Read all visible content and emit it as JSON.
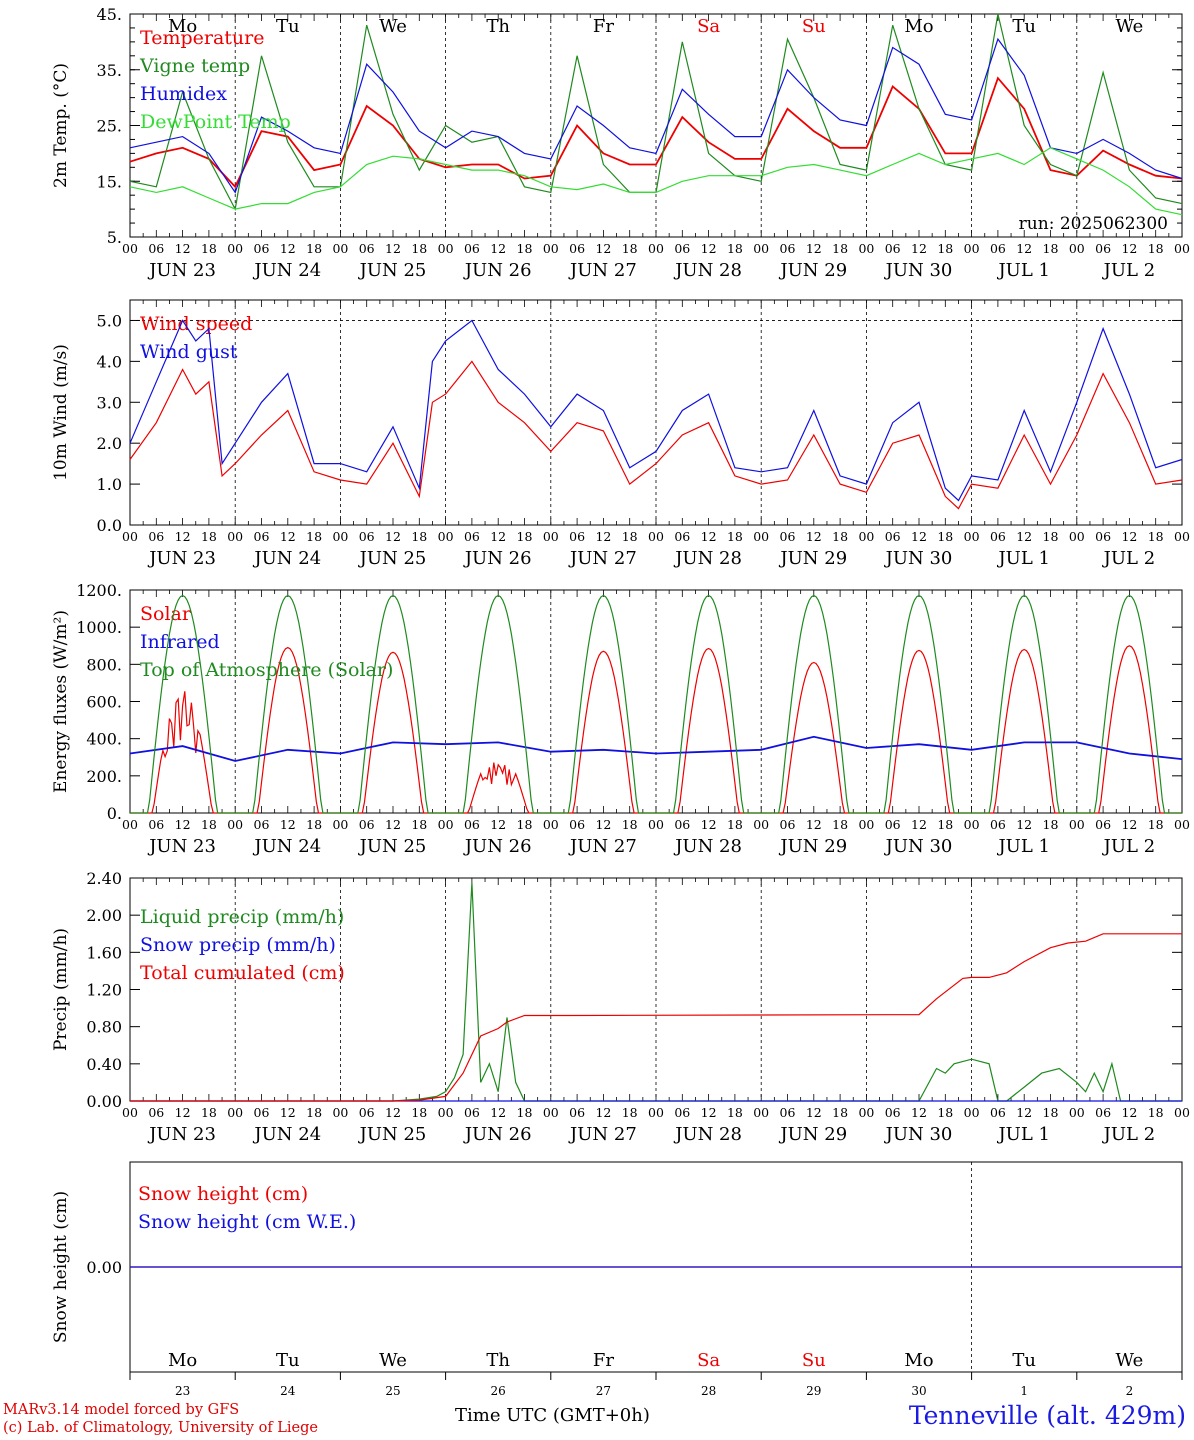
{
  "figure": {
    "run_label": "run: 2025062300",
    "station": "Tenneville (alt. 429m)",
    "credit_line1": "MARv3.14 model forced by GFS",
    "credit_line2": "(c) Lab. of Climatology, University of Liege",
    "time_label": "Time UTC (GMT+0h)"
  },
  "days": {
    "weekday_labels": [
      "Mo",
      "Tu",
      "We",
      "Th",
      "Fr",
      "Sa",
      "Su",
      "Mo",
      "Tu",
      "We"
    ],
    "weekend_indices": [
      5,
      6
    ],
    "date_labels": [
      "JUN 23",
      "JUN 24",
      "JUN 25",
      "JUN 26",
      "JUN 27",
      "JUN 28",
      "JUN 29",
      "JUN 30",
      "JUL  1",
      "JUL  2"
    ],
    "day_numbers": [
      "23",
      "24",
      "25",
      "26",
      "27",
      "28",
      "29",
      "30",
      "1",
      "2"
    ],
    "hour_ticks": [
      "00",
      "06",
      "12",
      "18"
    ],
    "final_tick": "00"
  },
  "colors": {
    "red": "#ee0000",
    "green": "#1f8a1f",
    "blue": "#1010e0",
    "lightgreen": "#33dd33",
    "darkgreen": "#1f8a1f"
  },
  "chart_data": [
    {
      "type": "line",
      "ylabel": "2m Temp. (°C)",
      "ylim": [
        5,
        45
      ],
      "yticks": [
        "5.",
        "15.",
        "25.",
        "35.",
        "45."
      ],
      "x_unit": "hours since JUN 23 00 UTC",
      "xlim": [
        0,
        240
      ],
      "series": [
        {
          "name": "Temperature",
          "color": "red",
          "x": [
            0,
            6,
            12,
            18,
            24,
            30,
            36,
            42,
            48,
            54,
            60,
            66,
            72,
            78,
            84,
            90,
            96,
            102,
            108,
            114,
            120,
            126,
            132,
            138,
            144,
            150,
            156,
            162,
            168,
            174,
            180,
            186,
            192,
            198,
            204,
            210,
            216,
            222,
            228,
            234,
            240
          ],
          "y": [
            18.5,
            20,
            21,
            19,
            14,
            24,
            23,
            17,
            18,
            28.5,
            25,
            19,
            17.5,
            18,
            18,
            15.5,
            16,
            25,
            20,
            18,
            18,
            26.5,
            22,
            19,
            19,
            28,
            24,
            21,
            21,
            32,
            28,
            20,
            20,
            33.5,
            28,
            17,
            16,
            20.5,
            18,
            16,
            15.5
          ]
        },
        {
          "name": "Vigne temp",
          "color": "green",
          "x": [
            0,
            6,
            12,
            18,
            24,
            30,
            36,
            42,
            48,
            54,
            60,
            66,
            72,
            78,
            84,
            90,
            96,
            102,
            108,
            114,
            120,
            126,
            132,
            138,
            144,
            150,
            156,
            162,
            168,
            174,
            180,
            186,
            192,
            198,
            204,
            210,
            216,
            222,
            228,
            234,
            240
          ],
          "y": [
            15,
            14,
            31,
            19,
            10,
            37.5,
            22,
            14,
            14,
            43,
            27,
            17,
            25,
            22,
            23,
            14,
            13,
            37.5,
            18,
            13,
            13,
            40,
            20,
            16,
            15,
            40.5,
            30,
            18,
            17,
            43,
            28,
            18,
            17,
            45,
            25,
            18,
            16,
            34.5,
            17,
            12,
            11
          ]
        },
        {
          "name": "Humidex",
          "color": "blue",
          "x": [
            0,
            6,
            12,
            18,
            24,
            30,
            36,
            42,
            48,
            54,
            60,
            66,
            72,
            78,
            84,
            90,
            96,
            102,
            108,
            114,
            120,
            126,
            132,
            138,
            144,
            150,
            156,
            162,
            168,
            174,
            180,
            186,
            192,
            198,
            204,
            210,
            216,
            222,
            228,
            234,
            240
          ],
          "y": [
            21,
            22,
            23,
            20,
            13,
            26.5,
            24,
            21,
            20,
            36,
            31,
            24,
            21,
            24,
            23,
            20,
            19,
            28.5,
            25,
            21,
            20,
            31.5,
            27,
            23,
            23,
            35,
            30,
            26,
            25,
            39,
            36,
            27,
            26,
            40.5,
            34,
            21,
            20,
            22.5,
            20,
            17,
            15.5
          ]
        },
        {
          "name": "DewPoint Temp",
          "color": "lightgreen",
          "x": [
            0,
            6,
            12,
            18,
            24,
            30,
            36,
            42,
            48,
            54,
            60,
            66,
            72,
            78,
            84,
            90,
            96,
            102,
            108,
            114,
            120,
            126,
            132,
            138,
            144,
            150,
            156,
            162,
            168,
            174,
            180,
            186,
            192,
            198,
            204,
            210,
            216,
            222,
            228,
            234,
            240
          ],
          "y": [
            14,
            13,
            14,
            12,
            10,
            11,
            11,
            13,
            14,
            18,
            19.5,
            19,
            18,
            17,
            17,
            16,
            14,
            13.5,
            14.5,
            13,
            13,
            15,
            16,
            16,
            16,
            17.5,
            18,
            17,
            16,
            18,
            20,
            18,
            19,
            20,
            18,
            21,
            19,
            17,
            14,
            10,
            9
          ]
        }
      ]
    },
    {
      "type": "line",
      "ylabel": "10m Wind (m/s)",
      "ylim": [
        0,
        5.5
      ],
      "yticks": [
        "0.0",
        "1.0",
        "2.0",
        "3.0",
        "4.0",
        "5.0"
      ],
      "xlim": [
        0,
        240
      ],
      "series": [
        {
          "name": "Wind speed",
          "color": "red",
          "x": [
            0,
            6,
            12,
            15,
            18,
            21,
            24,
            30,
            36,
            42,
            48,
            54,
            60,
            66,
            69,
            72,
            78,
            84,
            90,
            96,
            102,
            108,
            114,
            120,
            126,
            132,
            138,
            144,
            150,
            156,
            162,
            168,
            174,
            180,
            186,
            189,
            192,
            198,
            204,
            210,
            216,
            222,
            228,
            234,
            240
          ],
          "y": [
            1.6,
            2.5,
            3.8,
            3.2,
            3.5,
            1.2,
            1.5,
            2.2,
            2.8,
            1.3,
            1.1,
            1.0,
            2.0,
            0.7,
            3.0,
            3.2,
            4.0,
            3.0,
            2.5,
            1.8,
            2.5,
            2.3,
            1.0,
            1.5,
            2.2,
            2.5,
            1.2,
            1.0,
            1.1,
            2.2,
            1.0,
            0.8,
            2.0,
            2.2,
            0.7,
            0.4,
            1.0,
            0.9,
            2.2,
            1.0,
            2.2,
            3.7,
            2.5,
            1.0,
            1.1
          ]
        },
        {
          "name": "Wind gust",
          "color": "blue",
          "x": [
            0,
            6,
            12,
            15,
            18,
            21,
            24,
            30,
            36,
            42,
            48,
            54,
            60,
            66,
            69,
            72,
            78,
            84,
            90,
            96,
            102,
            108,
            114,
            120,
            126,
            132,
            138,
            144,
            150,
            156,
            162,
            168,
            174,
            180,
            186,
            189,
            192,
            198,
            204,
            210,
            216,
            222,
            228,
            234,
            240
          ],
          "y": [
            2.0,
            3.5,
            5.0,
            4.5,
            4.8,
            1.5,
            2.0,
            3.0,
            3.7,
            1.5,
            1.5,
            1.3,
            2.4,
            0.9,
            4.0,
            4.5,
            5.0,
            3.8,
            3.2,
            2.4,
            3.2,
            2.8,
            1.4,
            1.8,
            2.8,
            3.2,
            1.4,
            1.3,
            1.4,
            2.8,
            1.2,
            1.0,
            2.5,
            3.0,
            0.9,
            0.6,
            1.2,
            1.1,
            2.8,
            1.3,
            3.0,
            4.8,
            3.2,
            1.4,
            1.6
          ]
        }
      ]
    },
    {
      "type": "line",
      "ylabel": "Energy fluxes (W/m²)",
      "ylim": [
        0,
        1200
      ],
      "yticks": [
        "0.",
        "200.",
        "400.",
        "600.",
        "800.",
        "1000.",
        "1200."
      ],
      "xlim": [
        0,
        240
      ],
      "series": [
        {
          "name": "Solar",
          "color": "red",
          "daily_peak": [
            700,
            890,
            865,
            350,
            870,
            885,
            810,
            875,
            880,
            900
          ]
        },
        {
          "name": "Infrared",
          "color": "blue",
          "x": [
            0,
            12,
            24,
            36,
            48,
            60,
            72,
            84,
            96,
            108,
            120,
            132,
            144,
            156,
            168,
            180,
            192,
            204,
            216,
            228,
            240
          ],
          "y": [
            320,
            360,
            280,
            340,
            320,
            380,
            370,
            380,
            330,
            340,
            320,
            330,
            340,
            410,
            350,
            370,
            340,
            380,
            380,
            320,
            290
          ]
        },
        {
          "name": "Top of Atmosphere (Solar)",
          "color": "darkgreen",
          "daily_peak": [
            1170,
            1170,
            1170,
            1170,
            1170,
            1170,
            1170,
            1170,
            1170,
            1170
          ]
        }
      ]
    },
    {
      "type": "line",
      "ylabel": "Precip (mm/h)",
      "ylim": [
        0,
        2.4
      ],
      "yticks": [
        "0.00",
        "0.40",
        "0.80",
        "1.20",
        "1.60",
        "2.00",
        "2.40"
      ],
      "xlim": [
        0,
        240
      ],
      "series": [
        {
          "name": "Liquid precip (mm/h)",
          "color": "darkgreen",
          "x": [
            0,
            60,
            66,
            70,
            72,
            74,
            76,
            78,
            80,
            82,
            84,
            86,
            88,
            90,
            92,
            96,
            180,
            184,
            186,
            188,
            192,
            196,
            198,
            200,
            204,
            208,
            212,
            216,
            218,
            220,
            222,
            224,
            226,
            240
          ],
          "y": [
            0,
            0,
            0.02,
            0.05,
            0.1,
            0.25,
            0.5,
            2.35,
            0.2,
            0.4,
            0.1,
            0.9,
            0.2,
            0,
            0,
            0,
            0,
            0.35,
            0.3,
            0.4,
            0.45,
            0.4,
            0,
            0,
            0.15,
            0.3,
            0.35,
            0.2,
            0.1,
            0.3,
            0.1,
            0.4,
            0,
            0
          ]
        },
        {
          "name": "Snow precip (mm/h)",
          "color": "blue",
          "x": [
            0,
            240
          ],
          "y": [
            0,
            0
          ]
        },
        {
          "name": "Total cumulated (cm)",
          "color": "red",
          "x": [
            0,
            60,
            66,
            72,
            76,
            80,
            84,
            86,
            90,
            96,
            100,
            180,
            184,
            190,
            192,
            196,
            200,
            204,
            210,
            214,
            218,
            222,
            240
          ],
          "y": [
            0,
            0,
            0.01,
            0.05,
            0.3,
            0.7,
            0.78,
            0.85,
            0.92,
            0.92,
            0.92,
            0.93,
            1.1,
            1.32,
            1.33,
            1.33,
            1.38,
            1.5,
            1.65,
            1.7,
            1.72,
            1.8,
            1.8
          ]
        }
      ]
    },
    {
      "type": "line",
      "ylabel": "Snow height (cm)",
      "ylim": [
        -1,
        1
      ],
      "yticks": [
        "0.00"
      ],
      "xlim": [
        0,
        240
      ],
      "series": [
        {
          "name": "Snow height (cm)",
          "color": "red",
          "x": [
            0,
            240
          ],
          "y": [
            0,
            0
          ]
        },
        {
          "name": "Snow height (cm W.E.)",
          "color": "blue",
          "x": [
            0,
            240
          ],
          "y": [
            0,
            0
          ]
        }
      ]
    }
  ]
}
